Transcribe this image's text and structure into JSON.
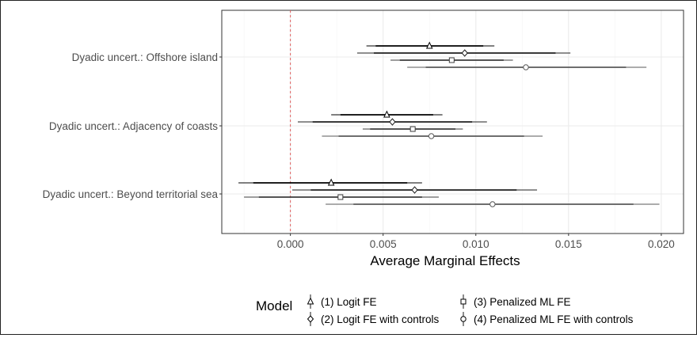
{
  "chart_data": {
    "type": "coefficient-plot",
    "title": "",
    "xlabel": "Average Marginal Effects",
    "ylabel": "",
    "xlim": [
      -0.0037,
      0.0212
    ],
    "x_ticks": [
      "0.000",
      "0.005",
      "0.010",
      "0.015",
      "0.020"
    ],
    "x_tick_values": [
      0.0,
      0.005,
      0.01,
      0.015,
      0.02
    ],
    "reference_line": 0.0,
    "grid": true,
    "legend_title": "Model",
    "legend_position": "bottom",
    "categories": [
      "Dyadic uncert.: Offshore island",
      "Dyadic uncert.: Adjacency of coasts",
      "Dyadic uncert.: Beyond territorial sea"
    ],
    "series": [
      {
        "name": "(1) Logit FE",
        "marker": "triangle",
        "estimates": [
          0.0075,
          0.0052,
          0.0022
        ],
        "ci_inner": [
          [
            0.0046,
            0.0104
          ],
          [
            0.0027,
            0.0077
          ],
          [
            -0.002,
            0.0063
          ]
        ],
        "ci_outer": [
          [
            0.0041,
            0.011
          ],
          [
            0.0022,
            0.0082
          ],
          [
            -0.0028,
            0.0071
          ]
        ]
      },
      {
        "name": "(2) Logit FE with controls",
        "marker": "diamond",
        "estimates": [
          0.0094,
          0.0055,
          0.0067
        ],
        "ci_inner": [
          [
            0.0045,
            0.0143
          ],
          [
            0.0012,
            0.0098
          ],
          [
            0.0011,
            0.0122
          ]
        ],
        "ci_outer": [
          [
            0.0036,
            0.0151
          ],
          [
            0.0004,
            0.0106
          ],
          [
            0.0001,
            0.0133
          ]
        ]
      },
      {
        "name": "(3) Penalized ML FE",
        "marker": "square",
        "estimates": [
          0.0087,
          0.0066,
          0.0027
        ],
        "ci_inner": [
          [
            0.0059,
            0.0115
          ],
          [
            0.0043,
            0.0089
          ],
          [
            -0.0017,
            0.0071
          ]
        ],
        "ci_outer": [
          [
            0.0054,
            0.012
          ],
          [
            0.0039,
            0.0093
          ],
          [
            -0.0025,
            0.008
          ]
        ]
      },
      {
        "name": "(4) Penalized ML FE with controls",
        "marker": "circle",
        "estimates": [
          0.0127,
          0.0076,
          0.0109
        ],
        "ci_inner": [
          [
            0.0073,
            0.0181
          ],
          [
            0.0026,
            0.0126
          ],
          [
            0.0034,
            0.0185
          ]
        ],
        "ci_outer": [
          [
            0.0063,
            0.0192
          ],
          [
            0.0017,
            0.0136
          ],
          [
            0.0019,
            0.0199
          ]
        ]
      }
    ]
  }
}
